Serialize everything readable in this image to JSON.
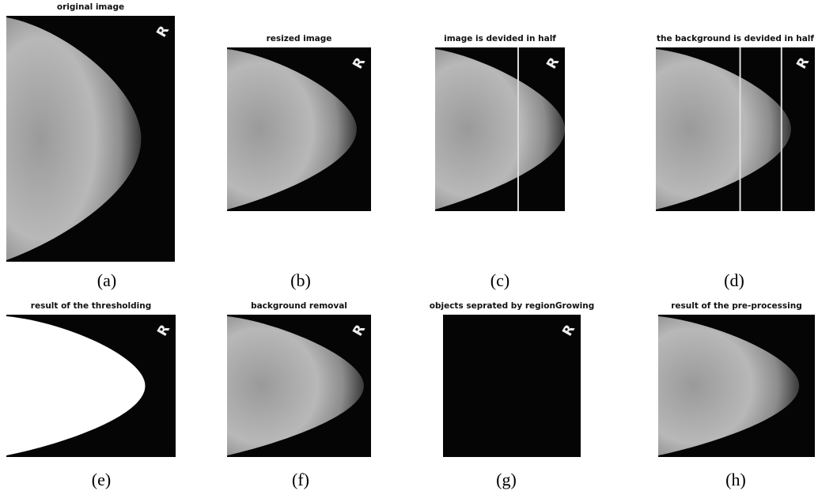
{
  "figure": {
    "image_marker": "R",
    "panels": [
      {
        "title": "original image",
        "caption": "(a)"
      },
      {
        "title": "resized image",
        "caption": "(b)"
      },
      {
        "title": "image is devided in half",
        "caption": "(c)"
      },
      {
        "title": "the background is devided in half",
        "caption": "(d)"
      },
      {
        "title": "result of the thresholding",
        "caption": "(e)"
      },
      {
        "title": "background removal",
        "caption": "(f)"
      },
      {
        "title": "objects seprated by regionGrowing",
        "caption": "(g)"
      },
      {
        "title": "result of the pre-processing",
        "caption": "(h)"
      }
    ]
  }
}
